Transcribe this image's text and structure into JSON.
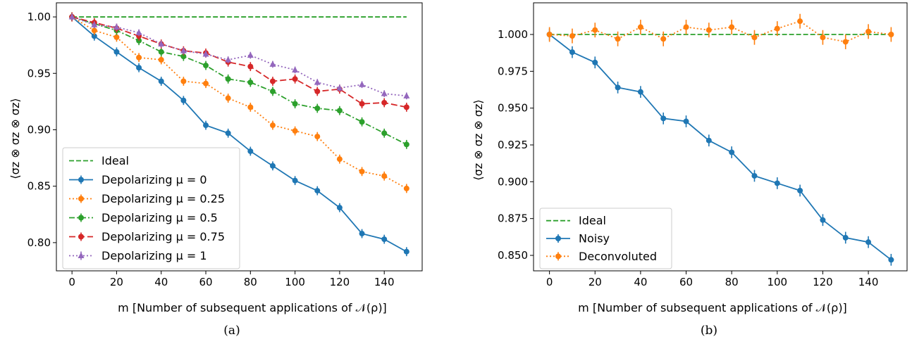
{
  "chart_data": [
    {
      "type": "line",
      "caption": "(a)",
      "xlabel": "m [Number of subsequent applications of 𝒩(ρ)]",
      "ylabel": "⟨σz ⊗ σz ⊗ σz⟩",
      "xlim": [
        -7,
        157
      ],
      "ylim": [
        0.775,
        1.0125
      ],
      "xticks": [
        "0",
        "20",
        "40",
        "60",
        "80",
        "100",
        "120",
        "140"
      ],
      "xtick_values": [
        0,
        20,
        40,
        60,
        80,
        100,
        120,
        140
      ],
      "yticks": [
        "0.80",
        "0.85",
        "0.90",
        "0.95",
        "1.00"
      ],
      "ytick_values": [
        0.8,
        0.85,
        0.9,
        0.95,
        1.0
      ],
      "legend_position": "lower-left",
      "x": [
        0,
        10,
        20,
        30,
        40,
        50,
        60,
        70,
        80,
        90,
        100,
        110,
        120,
        130,
        140,
        150
      ],
      "series": [
        {
          "name": "Ideal",
          "color": "#2ca02c",
          "dash": "dashed",
          "marker": "none",
          "values": [
            1,
            1,
            1,
            1,
            1,
            1,
            1,
            1,
            1,
            1,
            1,
            1,
            1,
            1,
            1,
            1
          ]
        },
        {
          "name": "Depolarizing μ = 0",
          "color": "#1f77b4",
          "dash": "solid",
          "marker": "circle",
          "values": [
            1.0,
            0.983,
            0.969,
            0.955,
            0.943,
            0.926,
            0.904,
            0.897,
            0.881,
            0.868,
            0.855,
            0.846,
            0.831,
            0.808,
            0.803,
            0.792
          ],
          "err": 0.004
        },
        {
          "name": "Depolarizing μ = 0.25",
          "color": "#ff7f0e",
          "dash": "dotted",
          "marker": "circle",
          "values": [
            1.0,
            0.988,
            0.982,
            0.964,
            0.962,
            0.943,
            0.941,
            0.928,
            0.92,
            0.904,
            0.899,
            0.894,
            0.874,
            0.863,
            0.859,
            0.848
          ],
          "err": 0.004
        },
        {
          "name": "Depolarizing μ = 0.5",
          "color": "#2ca02c",
          "dash": "dashdot",
          "marker": "circle",
          "values": [
            1.0,
            0.994,
            0.988,
            0.979,
            0.969,
            0.965,
            0.957,
            0.945,
            0.942,
            0.934,
            0.923,
            0.919,
            0.917,
            0.907,
            0.897,
            0.887
          ],
          "err": 0.004
        },
        {
          "name": "Depolarizing μ = 0.75",
          "color": "#d62728",
          "dash": "longdash",
          "marker": "circle",
          "values": [
            1.0,
            0.995,
            0.99,
            0.983,
            0.976,
            0.97,
            0.968,
            0.96,
            0.956,
            0.943,
            0.945,
            0.934,
            0.936,
            0.923,
            0.924,
            0.92
          ],
          "err": 0.004
        },
        {
          "name": "Depolarizing μ = 1",
          "color": "#9467bd",
          "dash": "dotted",
          "marker": "triangle",
          "values": [
            1.0,
            0.993,
            0.991,
            0.986,
            0.976,
            0.97,
            0.967,
            0.962,
            0.966,
            0.958,
            0.953,
            0.942,
            0.937,
            0.94,
            0.932,
            0.93
          ],
          "err": 0.003
        }
      ]
    },
    {
      "type": "line",
      "caption": "(b)",
      "xlabel": "m [Number of subsequent applications of 𝒩(ρ)]",
      "ylabel": "⟨σz ⊗ σz ⊗ σz⟩",
      "xlim": [
        -7,
        157
      ],
      "ylim": [
        0.8395,
        1.0215
      ],
      "xticks": [
        "0",
        "20",
        "40",
        "60",
        "80",
        "100",
        "120",
        "140"
      ],
      "xtick_values": [
        0,
        20,
        40,
        60,
        80,
        100,
        120,
        140
      ],
      "yticks": [
        "0.850",
        "0.875",
        "0.900",
        "0.925",
        "0.950",
        "0.975",
        "1.000"
      ],
      "ytick_values": [
        0.85,
        0.875,
        0.9,
        0.925,
        0.95,
        0.975,
        1.0
      ],
      "legend_position": "lower-left",
      "x": [
        0,
        10,
        20,
        30,
        40,
        50,
        60,
        70,
        80,
        90,
        100,
        110,
        120,
        130,
        140,
        150
      ],
      "series": [
        {
          "name": "Ideal",
          "color": "#2ca02c",
          "dash": "dashed",
          "marker": "none",
          "values": [
            1,
            1,
            1,
            1,
            1,
            1,
            1,
            1,
            1,
            1,
            1,
            1,
            1,
            1,
            1,
            1
          ]
        },
        {
          "name": "Noisy",
          "color": "#1f77b4",
          "dash": "solid",
          "marker": "circle",
          "values": [
            1.0,
            0.988,
            0.981,
            0.964,
            0.961,
            0.943,
            0.941,
            0.928,
            0.92,
            0.904,
            0.899,
            0.894,
            0.874,
            0.862,
            0.859,
            0.847
          ],
          "err": 0.004
        },
        {
          "name": "Deconvoluted",
          "color": "#ff7f0e",
          "dash": "dotted",
          "marker": "circle",
          "values": [
            1.0,
            0.999,
            1.003,
            0.997,
            1.005,
            0.997,
            1.005,
            1.003,
            1.005,
            0.998,
            1.004,
            1.009,
            0.998,
            0.995,
            1.002,
            1.0
          ],
          "err": 0.005
        }
      ]
    }
  ]
}
